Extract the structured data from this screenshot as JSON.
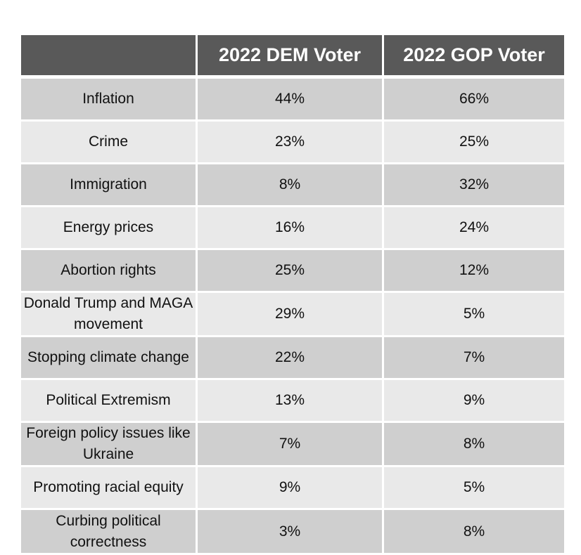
{
  "chart_data": {
    "type": "table",
    "columns": [
      "",
      "2022 DEM Voter",
      "2022 GOP Voter"
    ],
    "rows": [
      {
        "issue": "Inflation",
        "dem": "44%",
        "gop": "66%"
      },
      {
        "issue": "Crime",
        "dem": "23%",
        "gop": "25%"
      },
      {
        "issue": "Immigration",
        "dem": "8%",
        "gop": "32%"
      },
      {
        "issue": "Energy prices",
        "dem": "16%",
        "gop": "24%"
      },
      {
        "issue": "Abortion rights",
        "dem": "25%",
        "gop": "12%"
      },
      {
        "issue": "Donald Trump and MAGA movement",
        "dem": "29%",
        "gop": "5%"
      },
      {
        "issue": "Stopping climate change",
        "dem": "22%",
        "gop": "7%"
      },
      {
        "issue": "Political Extremism",
        "dem": "13%",
        "gop": "9%"
      },
      {
        "issue": "Foreign policy issues like Ukraine",
        "dem": "7%",
        "gop": "8%"
      },
      {
        "issue": "Promoting racial equity",
        "dem": "9%",
        "gop": "5%"
      },
      {
        "issue": "Curbing political correctness",
        "dem": "3%",
        "gop": "8%"
      }
    ],
    "series": [
      {
        "name": "2022 DEM Voter",
        "values": [
          44,
          23,
          8,
          16,
          25,
          29,
          22,
          13,
          7,
          9,
          3
        ]
      },
      {
        "name": "2022 GOP Voter",
        "values": [
          66,
          25,
          32,
          24,
          12,
          5,
          7,
          9,
          8,
          5,
          8
        ]
      }
    ]
  },
  "colors": {
    "header_bg": "#595959",
    "header_text": "#ffffff",
    "row_dark": "#cfcfcf",
    "row_light": "#e9e9e9"
  }
}
